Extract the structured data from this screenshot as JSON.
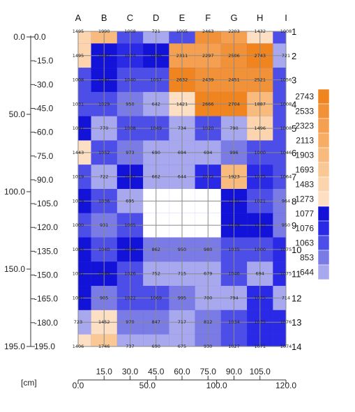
{
  "chart_data": {
    "type": "heatmap",
    "columns": [
      "A",
      "B",
      "C",
      "D",
      "E",
      "F",
      "G",
      "H",
      "I"
    ],
    "rows": [
      "1",
      "2",
      "3",
      "4",
      "5",
      "6",
      "7",
      "8",
      "9",
      "10",
      "11",
      "12",
      "13",
      "14"
    ],
    "values": [
      [
        1495,
        1990,
        1008,
        721,
        1005,
        2463,
        2203,
        1432,
        1008
      ],
      [
        1495,
        1087,
        1074,
        1086,
        2311,
        2297,
        2506,
        2743,
        721
      ],
      [
        1008,
        1087,
        1040,
        1057,
        2632,
        2439,
        2451,
        2521,
        1056
      ],
      [
        1031,
        1029,
        950,
        642,
        1421,
        2666,
        2704,
        1887,
        1008
      ],
      [
        1091,
        770,
        1008,
        1049,
        734,
        1020,
        790,
        1496,
        1008
      ],
      [
        1443,
        1052,
        973,
        690,
        694,
        694,
        996,
        1000,
        1046
      ],
      [
        1019,
        722,
        1087,
        662,
        644,
        1072,
        1923,
        1075,
        1064
      ],
      [
        1079,
        1036,
        695,
        null,
        null,
        null,
        1231,
        1021,
        964
      ],
      [
        1000,
        931,
        1005,
        null,
        null,
        null,
        1109,
        1213,
        950
      ],
      [
        1085,
        1040,
        1084,
        862,
        950,
        980,
        1035,
        1000,
        1075
      ],
      [
        1091,
        1099,
        1026,
        752,
        715,
        679,
        1046,
        694,
        1075
      ],
      [
        1091,
        905,
        1022,
        1069,
        995,
        700,
        794,
        1075,
        714
      ],
      [
        723,
        1452,
        970,
        847,
        717,
        812,
        1034,
        1075,
        1076
      ],
      [
        1406,
        1746,
        737,
        690,
        675,
        930,
        1027,
        1071,
        1074
      ]
    ],
    "legend": [
      {
        "label": "2743",
        "color": "#f0841e"
      },
      {
        "label": "2533",
        "color": "#f29238"
      },
      {
        "label": "2323",
        "color": "#f5a050"
      },
      {
        "label": "2113",
        "color": "#f7ad66"
      },
      {
        "label": "1903",
        "color": "#f9bb7d"
      },
      {
        "label": "1693",
        "color": "#fac895"
      },
      {
        "label": "1483",
        "color": "#fcd4ad"
      },
      {
        "label": "1273",
        "color": "#fde0c4"
      },
      {
        "label": "1077",
        "color": "#1212d8"
      },
      {
        "label": "1076",
        "color": "#2a2ae6"
      },
      {
        "label": "1063",
        "color": "#4d4de8"
      },
      {
        "label": "853",
        "color": "#7b7be6"
      },
      {
        "label": "644",
        "color": "#a8a8ee"
      }
    ],
    "yaxis": {
      "unit": "[cm]",
      "ticks": [
        "0.0",
        "-15.0",
        "-30.0",
        "-45.0",
        "-60.0",
        "-75.0",
        "-90.0",
        "-105.0",
        "-120.0",
        "-135.0",
        "-150.0",
        "-165.0",
        "-180.0",
        "195.0"
      ],
      "outer_ticks": [
        "0.0",
        "50.0",
        "100.0",
        "150.0",
        "195.0"
      ]
    },
    "xaxis": {
      "unit": "[cm]",
      "ticks": [
        "15.0",
        "30.0",
        "45.0",
        "60.0",
        "75.0",
        "90.0",
        "105.0"
      ],
      "outer_ticks": [
        "0.0",
        "50.0",
        "100.0",
        "120.0"
      ]
    }
  }
}
